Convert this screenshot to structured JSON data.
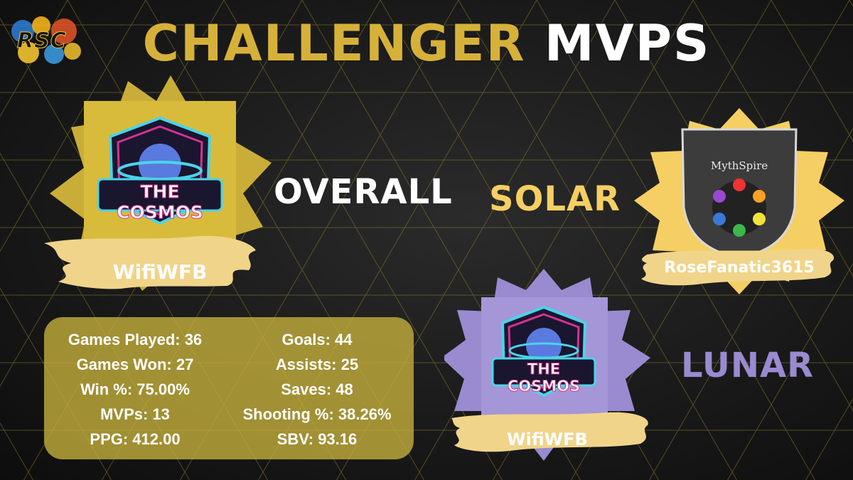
{
  "title": {
    "part1": "CHALLENGER",
    "part2": "MVPS"
  },
  "brand": {
    "logo_text": "RSC"
  },
  "categories": {
    "overall": "OVERALL",
    "solar": "SOLAR",
    "lunar": "LUNAR"
  },
  "overall": {
    "team_logo_text": "THE COSMOS",
    "player": "WifiWFB",
    "stats_left": [
      "Games Played: 36",
      "Games Won: 27",
      "Win %: 75.00%",
      "MVPs: 13",
      "PPG: 412.00"
    ],
    "stats_right": [
      "Goals: 44",
      "Assists: 25",
      "Saves: 48",
      "Shooting %: 38.26%",
      "SBV: 93.16"
    ]
  },
  "solar": {
    "team_logo_text": "MythSpire",
    "player": "RoseFanatic3615"
  },
  "lunar": {
    "team_logo_text": "THE COSMOS",
    "player": "WifiWFB"
  },
  "colors": {
    "gold": "#d6b13a",
    "solar": "#f5cf63",
    "lunar": "#9a8ad0",
    "background": "#1a1a1a"
  }
}
